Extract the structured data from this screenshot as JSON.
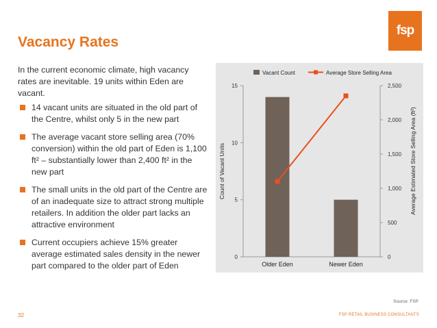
{
  "logo": {
    "text": "fsp"
  },
  "title": "Vacancy Rates",
  "intro": "In the current economic climate, high vacancy rates are inevitable. 19 units within Eden are vacant.",
  "bullets": [
    "14 vacant units are situated in the old part of the Centre, whilst only 5 in the new part",
    "The average vacant store selling area (70% conversion) within the old part of Eden is 1,100 ft² – substantially lower than 2,400 ft² in the new part",
    "The small units in the old part of the Centre are of an inadequate size to attract strong multiple retailers.  In addition the older part lacks an attractive environment",
    "Current occupiers achieve 15% greater average estimated sales density in the newer part compared to the older part of Eden"
  ],
  "chart_data": {
    "type": "bar",
    "categories": [
      "Older Eden",
      "Newer Eden"
    ],
    "series": [
      {
        "name": "Vacant Count",
        "type": "bar",
        "axis": "left",
        "values": [
          14,
          5
        ],
        "color": "#6f6259"
      },
      {
        "name": "Average Store Selling Area",
        "type": "line",
        "axis": "right",
        "values": [
          1100,
          2350
        ],
        "color": "#e8501e"
      }
    ],
    "ylabel": "Count of Vacant Units",
    "y2label": "Average Estimated Store Selling Area (ft²)",
    "ylim": [
      0,
      15
    ],
    "y2lim": [
      0,
      2500
    ],
    "yticks": [
      "0",
      "5",
      "10",
      "15"
    ],
    "y2ticks": [
      "0",
      "500",
      "1,000",
      "1,500",
      "2,000",
      "2,500"
    ],
    "legend_position": "top",
    "grid": false
  },
  "source": "Source: FSP",
  "page_number": "32",
  "footer": "FSP RETAIL BUSINESS CONSULTANTS",
  "colors": {
    "accent": "#e8731e",
    "bar": "#6f6259",
    "line": "#e8501e",
    "panel": "#e6e6e6"
  }
}
